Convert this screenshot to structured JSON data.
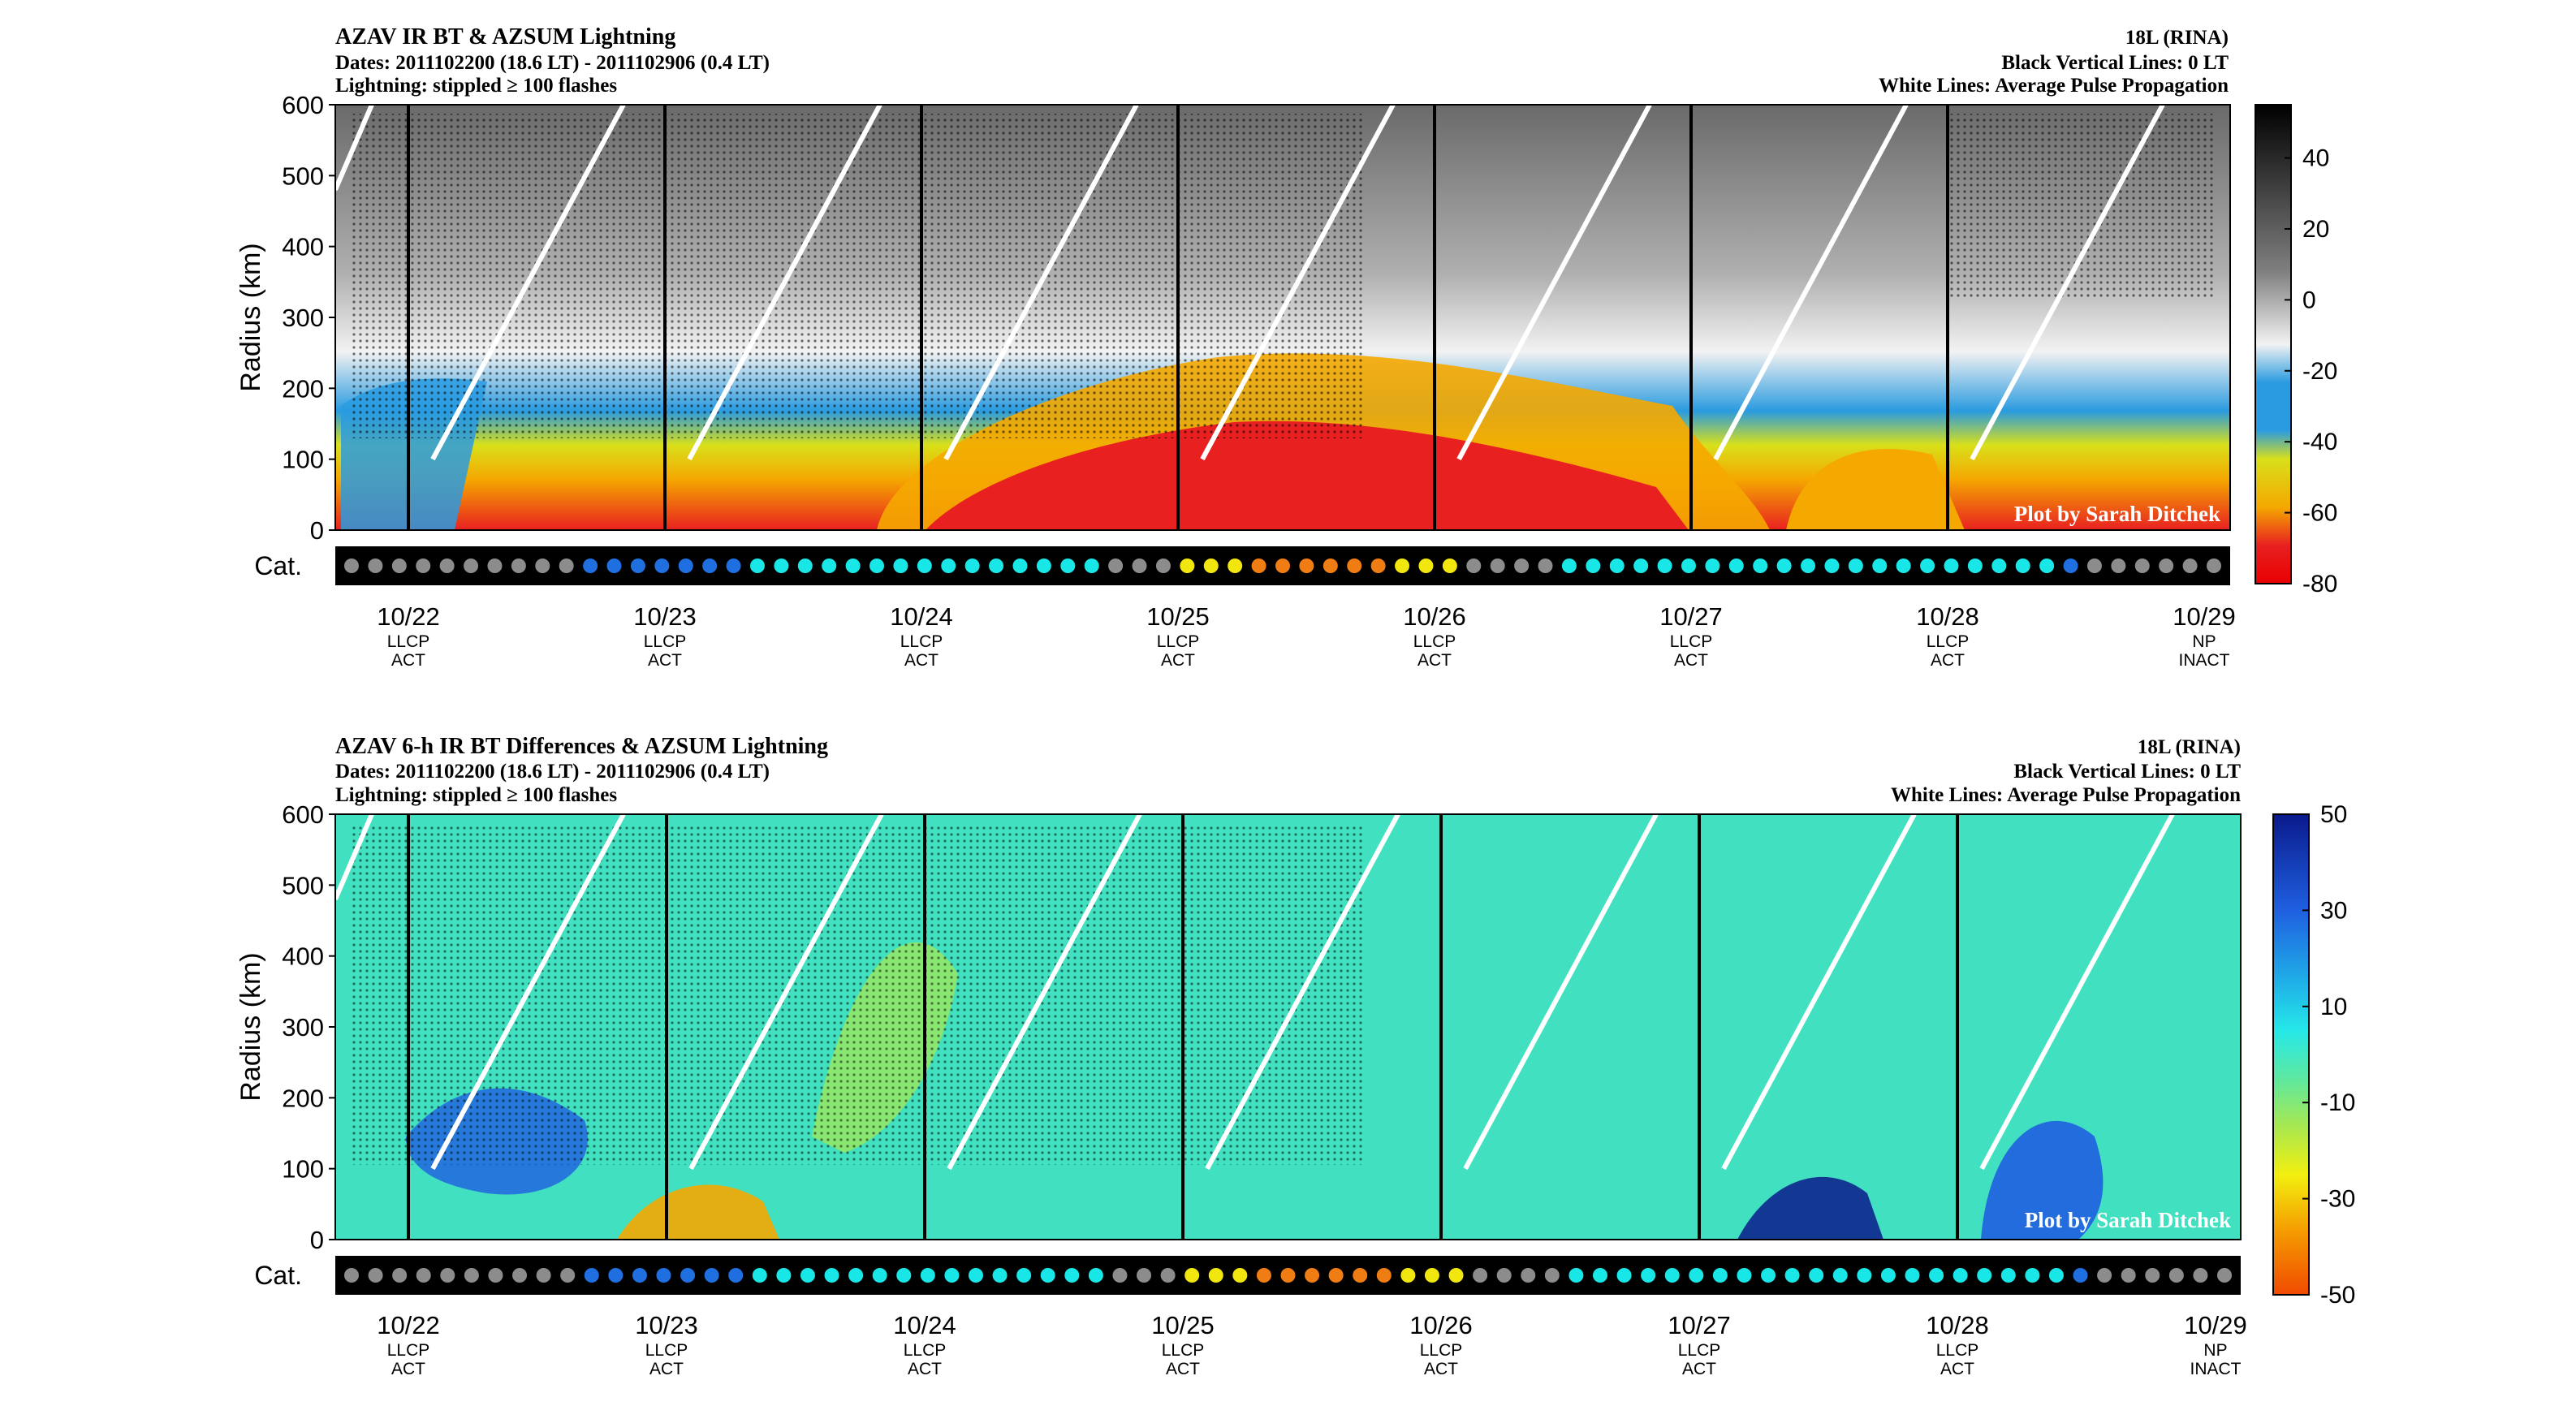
{
  "chart_data": [
    {
      "type": "heatmap",
      "title": "AZAV IR BT & AZSUM Lightning",
      "dates_line": "Dates: 2011102200 (18.6 LT) - 2011102906 (0.4 LT)",
      "lightning_line": "Lightning: stippled ≥ 100 flashes",
      "storm": "18L (RINA)",
      "black_lines_note": "Black Vertical Lines: 0 LT",
      "white_lines_note": "White Lines: Average Pulse Propagation",
      "credit": "Plot by Sarah Ditchek",
      "ylabel": "Radius (km)",
      "ylim": [
        0,
        600
      ],
      "yticks": [
        "0",
        "100",
        "200",
        "300",
        "400",
        "500",
        "600"
      ],
      "xticks": [
        "10/22",
        "10/23",
        "10/24",
        "10/25",
        "10/26",
        "10/27",
        "10/28",
        "10/29"
      ],
      "colorbar": {
        "ticks": [
          "40",
          "20",
          "0",
          "-20",
          "-40",
          "-60",
          "-80"
        ],
        "range": [
          -80,
          55
        ]
      }
    },
    {
      "type": "heatmap",
      "title": "AZAV 6-h IR BT Differences & AZSUM Lightning",
      "dates_line": "Dates: 2011102200 (18.6 LT) - 2011102906 (0.4 LT)",
      "lightning_line": "Lightning: stippled ≥ 100 flashes",
      "storm": "18L (RINA)",
      "black_lines_note": "Black Vertical Lines: 0 LT",
      "white_lines_note": "White Lines: Average Pulse Propagation",
      "credit": "Plot by Sarah Ditchek",
      "ylabel": "Radius (km)",
      "ylim": [
        0,
        600
      ],
      "yticks": [
        "0",
        "100",
        "200",
        "300",
        "400",
        "500",
        "600"
      ],
      "xticks": [
        "10/22",
        "10/23",
        "10/24",
        "10/25",
        "10/26",
        "10/27",
        "10/28",
        "10/29"
      ],
      "colorbar": {
        "ticks": [
          "50",
          "30",
          "10",
          "-10",
          "-30",
          "-50"
        ],
        "range": [
          -50,
          50
        ]
      }
    }
  ],
  "shared": {
    "cat_label": "Cat.",
    "stage_labels": [
      [
        "LLCP",
        "ACT"
      ],
      [
        "LLCP",
        "ACT"
      ],
      [
        "LLCP",
        "ACT"
      ],
      [
        "LLCP",
        "ACT"
      ],
      [
        "LLCP",
        "ACT"
      ],
      [
        "LLCP",
        "ACT"
      ],
      [
        "LLCP",
        "ACT"
      ],
      [
        "NP",
        "INACT"
      ]
    ],
    "category_colors": {
      "gray": "#8c8c8c",
      "blue": "#1f6fe0",
      "cyan": "#19e6e6",
      "green": "#7ddc7a",
      "yellow": "#f2e60f",
      "orange": "#f07d14"
    },
    "category_sequence": "ggggggggggbbbbbbbcccccccccccccccgggyyyooooooyyyggggcccccccccccccccccccccbgggggg"
  }
}
